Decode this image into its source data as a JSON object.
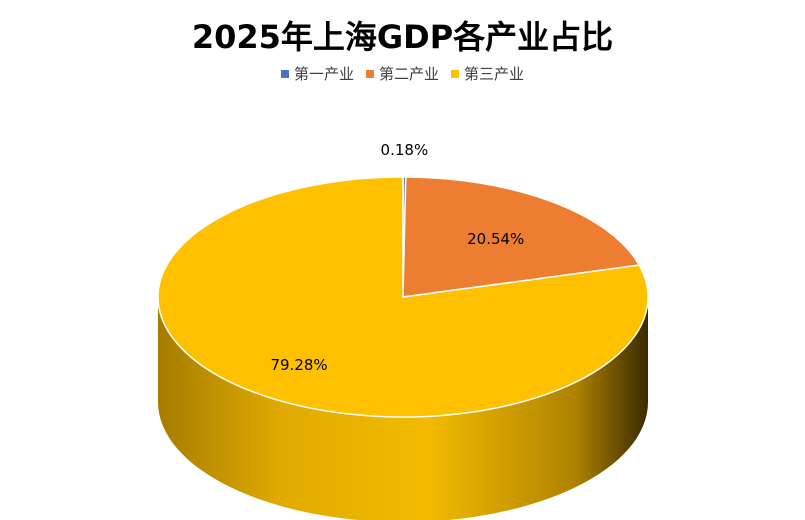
{
  "chart_data": {
    "type": "pie",
    "title": "2025年上海GDP各产业占比",
    "categories": [
      "第一产业",
      "第二产业",
      "第三产业"
    ],
    "values": [
      0.18,
      20.54,
      79.28
    ],
    "labels": [
      "0.18%",
      "20.54%",
      "79.28%"
    ],
    "colors": [
      "#4472C4",
      "#ED7D31",
      "#FFC000"
    ],
    "legend_position": "top",
    "style": "3d"
  }
}
